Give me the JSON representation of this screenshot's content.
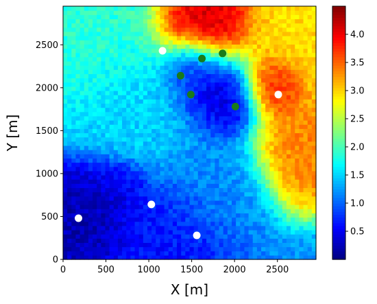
{
  "chart_data": {
    "type": "heatmap",
    "title": "",
    "xlabel": "X [m]",
    "ylabel": "Y [m]",
    "xlim": [
      0,
      2950
    ],
    "ylim": [
      0,
      2950
    ],
    "x_ticks": [
      0,
      500,
      1000,
      1500,
      2000,
      2500
    ],
    "x_tick_labels": [
      "0",
      "500",
      "1000",
      "1500",
      "2000",
      "2500"
    ],
    "y_ticks": [
      0,
      500,
      1000,
      1500,
      2000,
      2500
    ],
    "y_tick_labels": [
      "0",
      "500",
      "1000",
      "1500",
      "2000",
      "2500"
    ],
    "colormap": "jet",
    "colorbar": {
      "vmin": 0.0,
      "vmax": 4.5,
      "ticks": [
        0.5,
        1.0,
        1.5,
        2.0,
        2.5,
        3.0,
        3.5,
        4.0
      ],
      "tick_labels": [
        "0.5",
        "1.0",
        "1.5",
        "2.0",
        "2.5",
        "3.0",
        "3.5",
        "4.0"
      ]
    },
    "field_features": [
      {
        "x": 1650,
        "y": 2750,
        "value": 4.2,
        "spread": 420
      },
      {
        "x": 2450,
        "y": 2050,
        "value": 4.0,
        "spread": 260
      },
      {
        "x": 2800,
        "y": 1300,
        "value": 3.4,
        "spread": 420
      },
      {
        "x": 2700,
        "y": 2600,
        "value": 3.0,
        "spread": 500
      },
      {
        "x": 1800,
        "y": 1950,
        "value": 0.3,
        "spread": 380
      },
      {
        "x": 1500,
        "y": 2250,
        "value": 0.5,
        "spread": 250
      },
      {
        "x": 250,
        "y": 550,
        "value": 0.2,
        "spread": 420
      },
      {
        "x": 650,
        "y": 850,
        "value": 0.4,
        "spread": 250
      },
      {
        "x": 1200,
        "y": 350,
        "value": 0.6,
        "spread": 500
      },
      {
        "x": 300,
        "y": 2700,
        "value": 1.9,
        "spread": 650
      },
      {
        "x": 900,
        "y": 1700,
        "value": 1.5,
        "spread": 600
      },
      {
        "x": 1700,
        "y": 900,
        "value": 1.2,
        "spread": 500
      }
    ],
    "markers": [
      {
        "group": "white",
        "color": "#ffffff",
        "points": [
          {
            "x": 180,
            "y": 480
          },
          {
            "x": 1030,
            "y": 640
          },
          {
            "x": 1560,
            "y": 280
          },
          {
            "x": 1160,
            "y": 2430
          },
          {
            "x": 2510,
            "y": 1920
          }
        ]
      },
      {
        "group": "green",
        "color": "#1a7a1a",
        "points": [
          {
            "x": 1370,
            "y": 2140
          },
          {
            "x": 1620,
            "y": 2340
          },
          {
            "x": 1860,
            "y": 2400
          },
          {
            "x": 1490,
            "y": 1920
          },
          {
            "x": 2010,
            "y": 1780
          }
        ]
      }
    ]
  }
}
